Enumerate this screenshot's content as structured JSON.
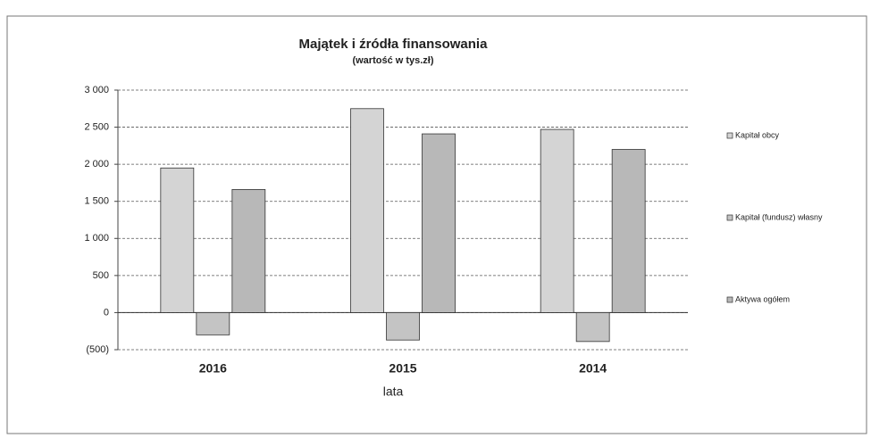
{
  "chart_data": {
    "type": "bar",
    "title": "Majątek i źródła finansowania",
    "subtitle": "(wartość w tys.zł)",
    "x_label": "lata",
    "categories": [
      "2016",
      "2015",
      "2014"
    ],
    "series": [
      {
        "name": "Kapitał obcy",
        "color": "#d4d4d4",
        "values": [
          1950,
          2750,
          2470
        ]
      },
      {
        "name": "Kapitał (fundusz) własny",
        "color": "#c4c4c4",
        "values": [
          -300,
          -370,
          -390
        ]
      },
      {
        "name": "Aktywa ogółem",
        "color": "#b8b8b8",
        "values": [
          1660,
          2410,
          2200
        ]
      }
    ],
    "ylim": [
      -500,
      3000
    ],
    "yticks": [
      {
        "value": -500,
        "label": "(500)"
      },
      0,
      500,
      {
        "value": 1000,
        "label": "1 000"
      },
      {
        "value": 1500,
        "label": "1 500"
      },
      {
        "value": 2000,
        "label": "2 000"
      },
      {
        "value": 2500,
        "label": "2 500"
      },
      {
        "value": 3000,
        "label": "3 000"
      }
    ],
    "grid": true,
    "legend": "right"
  }
}
